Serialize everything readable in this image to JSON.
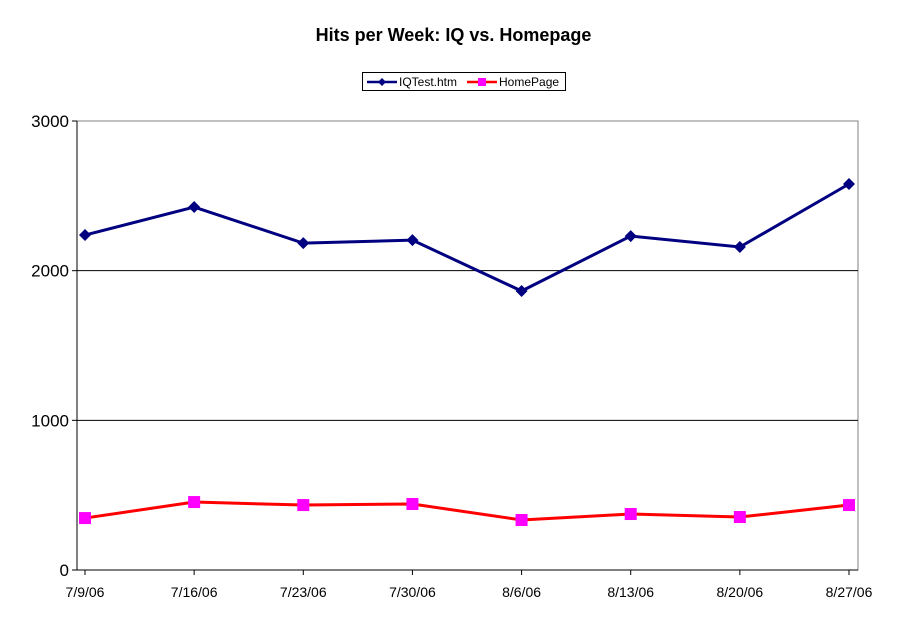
{
  "chart_data": {
    "type": "line",
    "title": "Hits per Week: IQ vs. Homepage",
    "xlabel": "",
    "ylabel": "",
    "categories": [
      "7/9/06",
      "7/16/06",
      "7/23/06",
      "7/30/06",
      "8/6/06",
      "8/13/06",
      "8/20/06",
      "8/27/06"
    ],
    "ylim": [
      0,
      3000
    ],
    "yticks": [
      "0",
      "1000",
      "2000",
      "3000"
    ],
    "grid": true,
    "legend": "top-center",
    "series": [
      {
        "name": "IQTest.htm",
        "color": "#000080",
        "marker": "diamond",
        "values": [
          2238,
          2425,
          2184,
          2204,
          1864,
          2231,
          2158,
          2579
        ]
      },
      {
        "name": "HomePage",
        "color": "#FF0000",
        "marker_color": "#FF00FF",
        "marker": "square",
        "values": [
          347,
          454,
          434,
          441,
          334,
          374,
          354,
          434
        ]
      }
    ]
  }
}
